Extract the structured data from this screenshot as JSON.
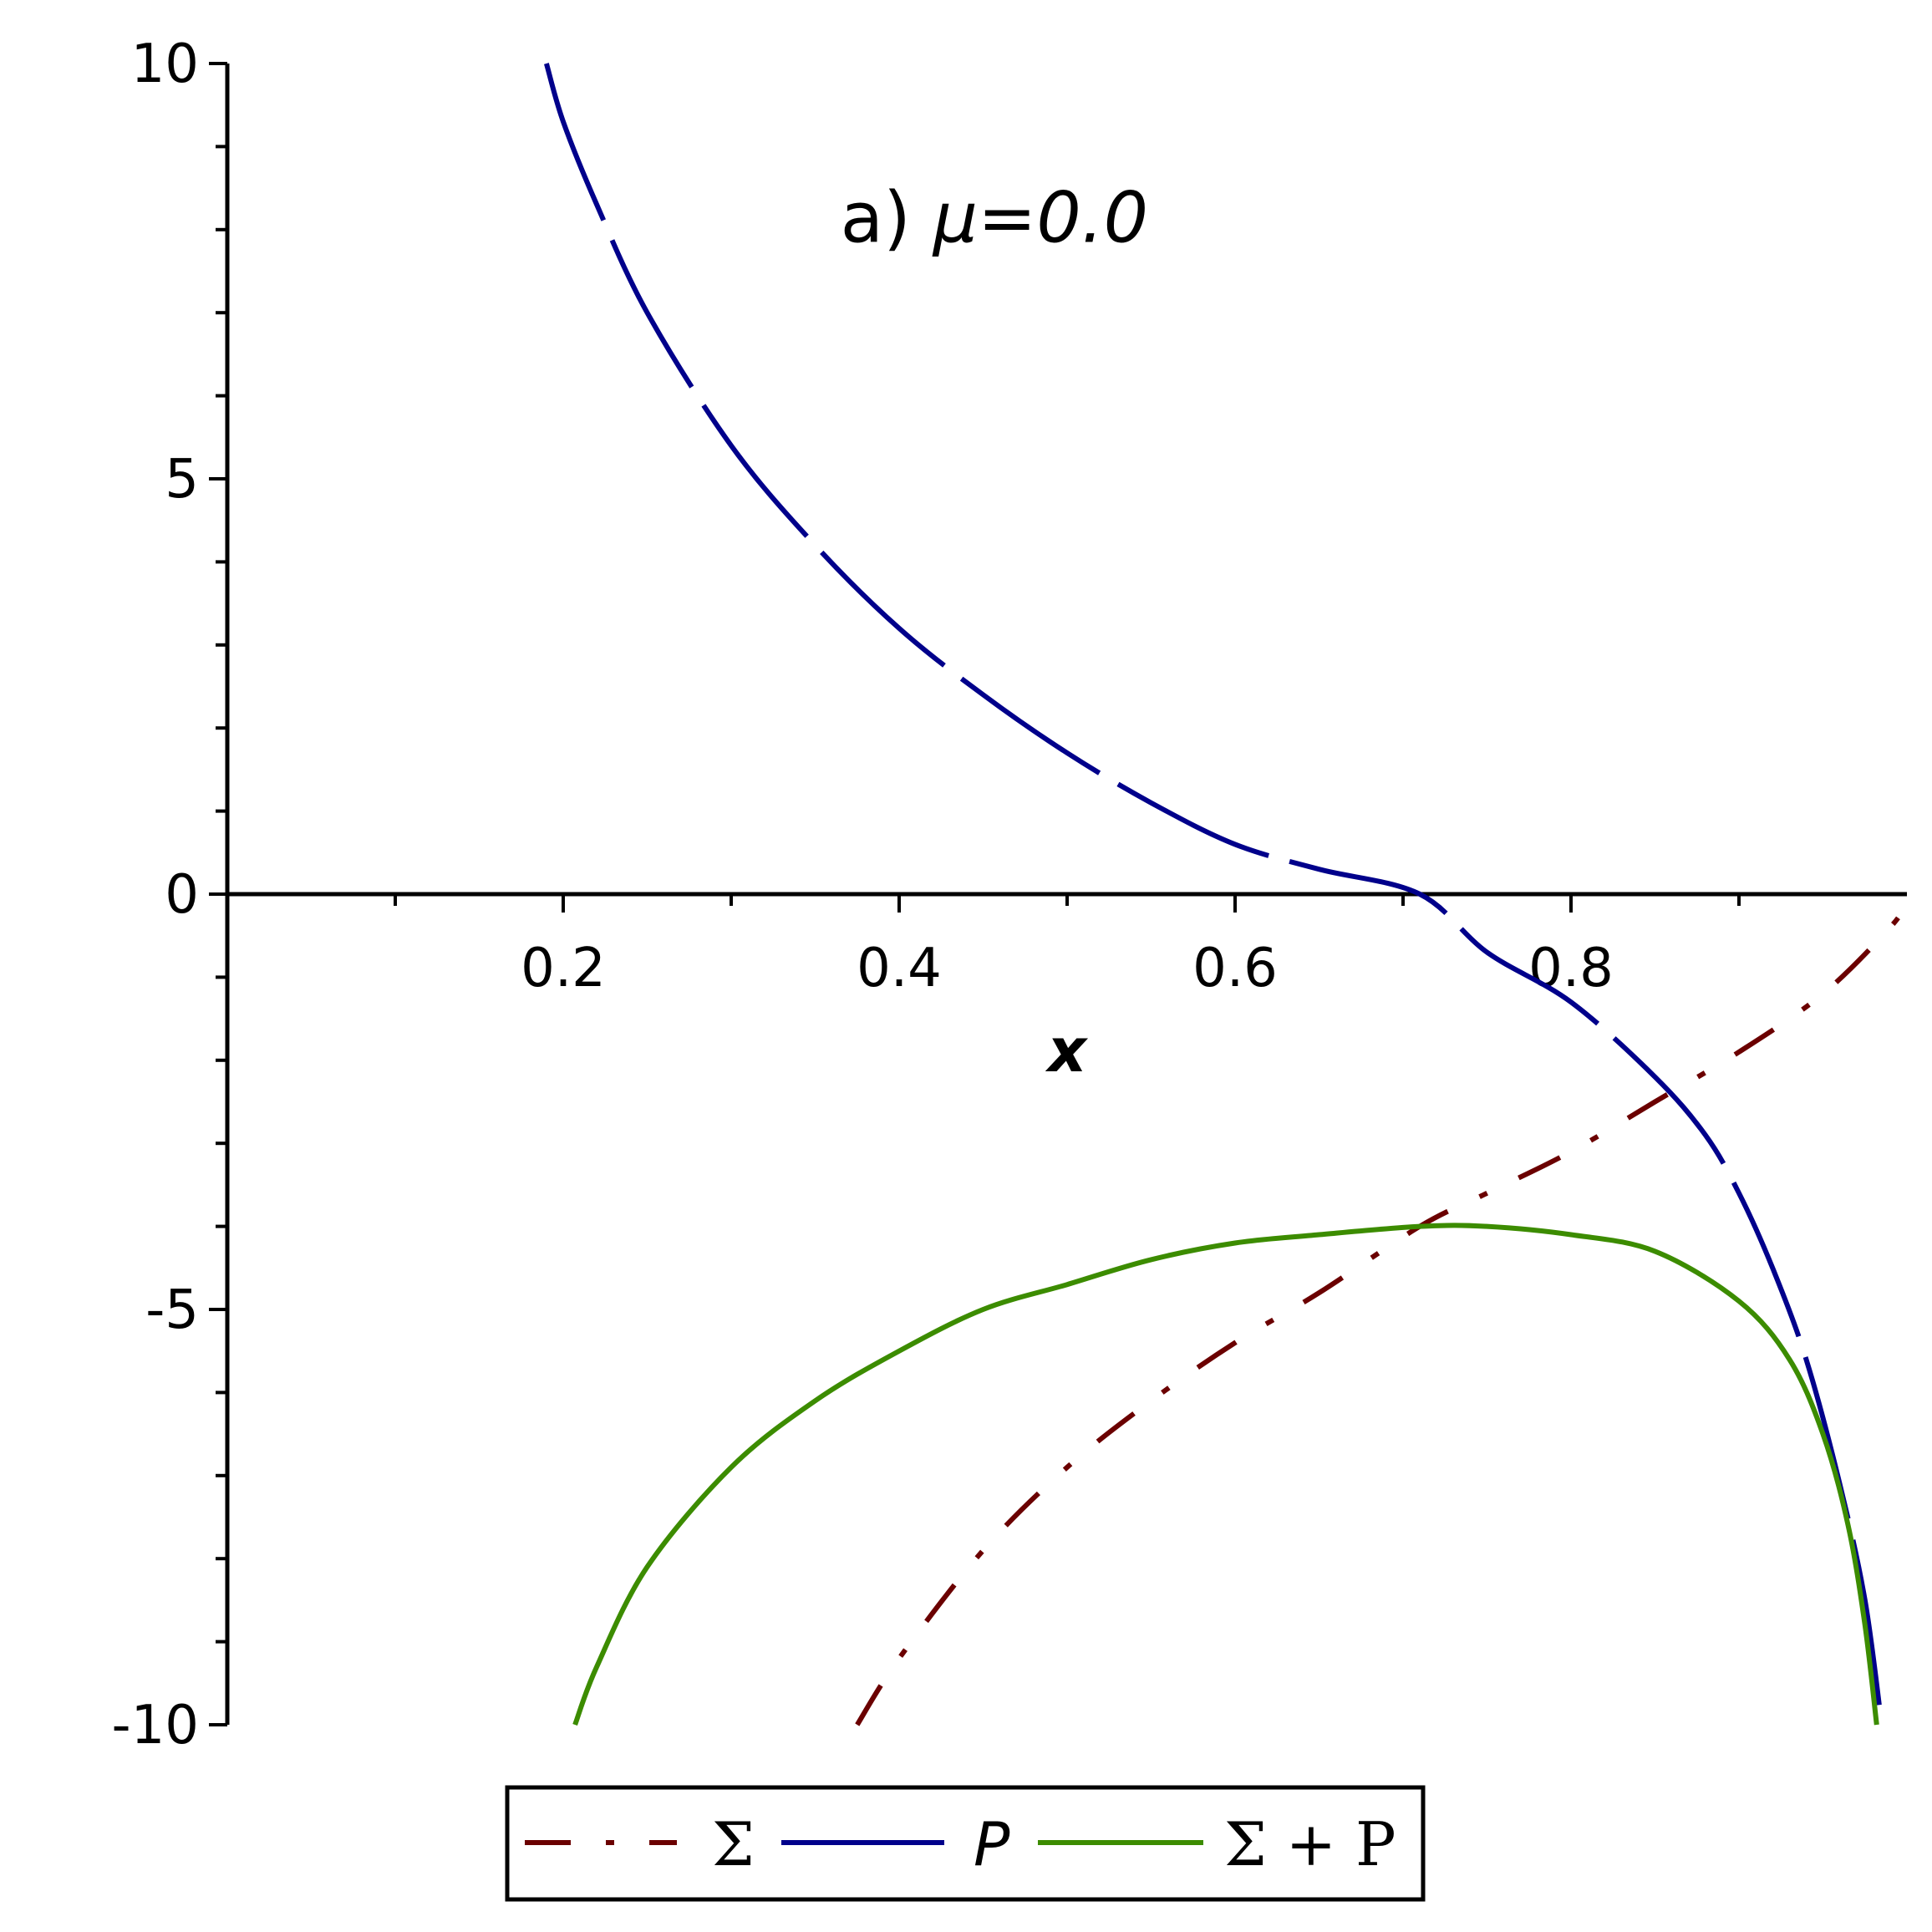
{
  "chart_data": {
    "type": "line",
    "title": "",
    "annotation": {
      "prefix": "a) ",
      "math": "μ=0.0"
    },
    "xlabel": "x",
    "ylabel": "",
    "xlim": [
      0,
      1.0
    ],
    "ylim": [
      -10,
      10
    ],
    "x_ticks": [
      0.2,
      0.4,
      0.6,
      0.8
    ],
    "x_tick_labels": [
      "0.2",
      "0.4",
      "0.6",
      "0.8"
    ],
    "y_ticks": [
      -10,
      -5,
      0,
      5,
      10
    ],
    "y_tick_labels": [
      "-10",
      "-5",
      "0",
      "5",
      "10"
    ],
    "grid": false,
    "legend_position": "bottom",
    "series": [
      {
        "name": "Σ",
        "color": "#6b0000",
        "dash": "dash-dot",
        "x": [
          0.375,
          0.4,
          0.45,
          0.5,
          0.55,
          0.6,
          0.65,
          0.71,
          0.75,
          0.8,
          0.85,
          0.9,
          0.95,
          0.99,
          1.0
        ],
        "y": [
          -10.0,
          -9.2,
          -7.9,
          -6.9,
          -6.1,
          -5.4,
          -4.8,
          -4.0,
          -3.6,
          -3.1,
          -2.5,
          -1.9,
          -1.2,
          -0.4,
          -0.1
        ]
      },
      {
        "name": "P",
        "color": "#00008b",
        "dash": "long-dash",
        "x": [
          0.19,
          0.2,
          0.22,
          0.25,
          0.3,
          0.35,
          0.4,
          0.45,
          0.5,
          0.55,
          0.6,
          0.65,
          0.71,
          0.75,
          0.8,
          0.85,
          0.88,
          0.9,
          0.92,
          0.94,
          0.96,
          0.975,
          0.985
        ],
        "y": [
          10.0,
          9.3,
          8.3,
          7.0,
          5.4,
          4.2,
          3.2,
          2.4,
          1.7,
          1.1,
          0.6,
          0.3,
          0.0,
          -0.7,
          -1.3,
          -2.2,
          -2.9,
          -3.6,
          -4.5,
          -5.6,
          -7.1,
          -8.5,
          -10.0
        ]
      },
      {
        "name": "Σ + P",
        "color": "#3c8c00",
        "dash": "solid",
        "x": [
          0.207,
          0.22,
          0.25,
          0.3,
          0.35,
          0.4,
          0.45,
          0.5,
          0.55,
          0.6,
          0.65,
          0.71,
          0.75,
          0.8,
          0.85,
          0.9,
          0.93,
          0.95,
          0.965,
          0.975,
          0.982
        ],
        "y": [
          -10.0,
          -9.3,
          -8.1,
          -6.9,
          -6.1,
          -5.5,
          -5.0,
          -4.7,
          -4.4,
          -4.2,
          -4.1,
          -4.0,
          -4.0,
          -4.1,
          -4.3,
          -4.9,
          -5.6,
          -6.5,
          -7.6,
          -8.8,
          -10.0
        ]
      }
    ]
  }
}
